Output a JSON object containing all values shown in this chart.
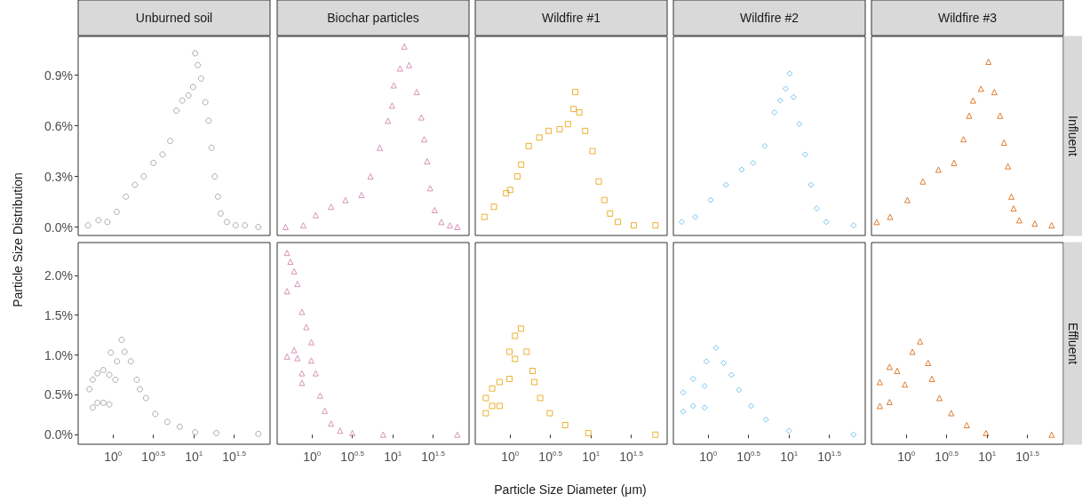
{
  "chart_data": [
    {
      "type": "scatter",
      "title": "Unburned soil",
      "ylabel": "Particle Size Distribution",
      "marker": "circle",
      "grid": false,
      "tick_labels": "y",
      "xlim": [
        0.37,
        88
      ],
      "log": "x",
      "ylim": [
        -0.05,
        1.13
      ],
      "yticks": [
        {
          "value": 0,
          "label": "0.0%"
        },
        {
          "value": 0.3,
          "label": "0.3%"
        },
        {
          "value": 0.6,
          "label": "0.6%"
        },
        {
          "value": 0.9,
          "label": "0.9%"
        }
      ],
      "series": [
        {
          "color": "#999999",
          "x": [
            0.49,
            0.66,
            0.85,
            1.11,
            1.44,
            1.87,
            2.4,
            3.16,
            4.1,
            5.1,
            6.1,
            7.2,
            8.6,
            9.8,
            10.4,
            11.2,
            12.3,
            13.9,
            15.2,
            16.6,
            18.2,
            19.9,
            21.5,
            25.7,
            33,
            43,
            63
          ],
          "values": [
            0.01,
            0.04,
            0.03,
            0.09,
            0.18,
            0.25,
            0.3,
            0.38,
            0.43,
            0.51,
            0.69,
            0.75,
            0.78,
            0.83,
            1.03,
            0.96,
            0.88,
            0.74,
            0.63,
            0.47,
            0.3,
            0.18,
            0.08,
            0.03,
            0.01,
            0.01,
            0.0
          ]
        }
      ]
    },
    {
      "type": "scatter",
      "title": "Biochar particles",
      "marker": "triangle",
      "grid": false,
      "tick_labels": false,
      "xlim": [
        0.37,
        88
      ],
      "log": "x",
      "ylim": [
        -0.05,
        1.13
      ],
      "series": [
        {
          "color": "#cc79a7",
          "x": [
            0.47,
            0.78,
            1.11,
            1.72,
            2.6,
            4.1,
            5.3,
            6.9,
            8.7,
            9.8,
            10.3,
            12.3,
            13.9,
            15.9,
            19.8,
            22.6,
            24.5,
            26.7,
            29,
            33,
            40,
            51,
            63
          ],
          "values": [
            0.0,
            0.01,
            0.07,
            0.12,
            0.16,
            0.19,
            0.3,
            0.47,
            0.63,
            0.72,
            0.84,
            0.94,
            1.07,
            0.96,
            0.8,
            0.65,
            0.52,
            0.39,
            0.23,
            0.1,
            0.03,
            0.01,
            0.0
          ]
        }
      ]
    },
    {
      "type": "scatter",
      "title": "Wildfire #1",
      "marker": "square",
      "grid": false,
      "tick_labels": false,
      "xlim": [
        0.37,
        88
      ],
      "log": "x",
      "ylim": [
        -0.05,
        1.13
      ],
      "series": [
        {
          "color": "#e69f00",
          "x": [
            0.48,
            0.63,
            0.89,
            1.0,
            1.23,
            1.37,
            1.7,
            2.3,
            3.0,
            4.1,
            5.2,
            6.1,
            6.4,
            7.2,
            8.5,
            10.5,
            12.5,
            14.7,
            17.3,
            21.6,
            34,
            63
          ],
          "values": [
            0.06,
            0.12,
            0.2,
            0.22,
            0.3,
            0.37,
            0.48,
            0.53,
            0.57,
            0.58,
            0.61,
            0.7,
            0.8,
            0.68,
            0.57,
            0.45,
            0.27,
            0.16,
            0.08,
            0.03,
            0.01,
            0.01
          ]
        }
      ]
    },
    {
      "type": "scatter",
      "title": "Wildfire #2",
      "marker": "diamond",
      "grid": false,
      "tick_labels": false,
      "xlim": [
        0.37,
        88
      ],
      "log": "x",
      "ylim": [
        -0.05,
        1.13
      ],
      "series": [
        {
          "color": "#56b4e9",
          "x": [
            0.47,
            0.69,
            1.07,
            1.66,
            2.6,
            3.6,
            5.0,
            6.6,
            7.8,
            9.1,
            10.2,
            11.4,
            13.4,
            15.9,
            18.7,
            22,
            29,
            63
          ],
          "values": [
            0.03,
            0.06,
            0.16,
            0.25,
            0.34,
            0.38,
            0.48,
            0.68,
            0.75,
            0.82,
            0.91,
            0.77,
            0.61,
            0.43,
            0.25,
            0.11,
            0.03,
            0.01
          ]
        }
      ]
    },
    {
      "type": "scatter",
      "title": "Wildfire #3",
      "annotations": [
        "Influent"
      ],
      "marker": "triangle",
      "grid": false,
      "tick_labels": false,
      "xlim": [
        0.37,
        88
      ],
      "log": "x",
      "ylim": [
        -0.05,
        1.13
      ],
      "series": [
        {
          "color": "#d55e00",
          "x": [
            0.43,
            0.63,
            1.03,
            1.6,
            2.5,
            3.9,
            5.1,
            6.0,
            6.7,
            8.4,
            10.4,
            12.3,
            14.5,
            16.2,
            18.1,
            20,
            21.3,
            25,
            39,
            63
          ],
          "values": [
            0.03,
            0.06,
            0.16,
            0.27,
            0.34,
            0.38,
            0.52,
            0.66,
            0.75,
            0.82,
            0.98,
            0.8,
            0.66,
            0.5,
            0.36,
            0.18,
            0.11,
            0.04,
            0.02,
            0.01
          ]
        }
      ]
    },
    {
      "type": "scatter",
      "marker": "circle",
      "grid": false,
      "xlim": [
        0.37,
        88
      ],
      "xticks": [
        {
          "value": 1,
          "label": "10$^{0}$"
        },
        {
          "value": 3.162,
          "label": "10$^{0.5}$"
        },
        {
          "value": 10,
          "label": "10$^{1}$"
        },
        {
          "value": 31.62,
          "label": "10$^{1.5}$"
        }
      ],
      "log": "x",
      "ylim": [
        -0.12,
        2.41
      ],
      "yticks": [
        {
          "value": 0,
          "label": "0.0%"
        },
        {
          "value": 0.5,
          "label": "0.5%"
        },
        {
          "value": 1,
          "label": "1.0%"
        },
        {
          "value": 1.5,
          "label": "1.5%"
        },
        {
          "value": 2,
          "label": "2.0%"
        }
      ],
      "series": [
        {
          "color": "#999999",
          "x": [
            0.51,
            0.56,
            0.56,
            0.64,
            0.64,
            0.76,
            0.76,
            0.9,
            0.9,
            0.94,
            1.07,
            1.12,
            1.28,
            1.39,
            1.66,
            1.97,
            2.15,
            2.56,
            3.33,
            4.7,
            6.7,
            10.4,
            19,
            63
          ],
          "values": [
            0.57,
            0.69,
            0.34,
            0.77,
            0.4,
            0.81,
            0.4,
            0.75,
            0.38,
            1.03,
            0.69,
            0.92,
            1.19,
            1.04,
            0.92,
            0.69,
            0.57,
            0.46,
            0.26,
            0.16,
            0.1,
            0.03,
            0.02,
            0.01
          ]
        }
      ]
    },
    {
      "type": "scatter",
      "marker": "triangle",
      "grid": false,
      "tick_labels": "x",
      "xlim": [
        0.37,
        88
      ],
      "xticks": [
        {
          "value": 1,
          "label": "10$^{0}$"
        },
        {
          "value": 3.162,
          "label": "10$^{0.5}$"
        },
        {
          "value": 10,
          "label": "10$^{1}$"
        },
        {
          "value": 31.62,
          "label": "10$^{1.5}$"
        }
      ],
      "log": "x",
      "ylim": [
        -0.12,
        2.41
      ],
      "series": [
        {
          "color": "#cc79a7",
          "x": [
            0.49,
            0.49,
            0.49,
            0.54,
            0.6,
            0.6,
            0.66,
            0.66,
            0.75,
            0.75,
            0.75,
            0.85,
            0.98,
            0.98,
            1.11,
            1.26,
            1.44,
            1.72,
            2.23,
            3.16,
            7.6,
            63
          ],
          "values": [
            2.28,
            1.8,
            0.98,
            2.17,
            2.05,
            1.06,
            1.89,
            0.96,
            1.54,
            0.77,
            0.65,
            1.35,
            1.16,
            0.93,
            0.77,
            0.49,
            0.3,
            0.14,
            0.05,
            0.02,
            0.0,
            0.0
          ]
        }
      ]
    },
    {
      "type": "scatter",
      "xlabel": "Particle Size Diameter (μm)",
      "marker": "square",
      "grid": false,
      "tick_labels": "x",
      "xlim": [
        0.37,
        88
      ],
      "xticks": [
        {
          "value": 1,
          "label": "10$^{0}$"
        },
        {
          "value": 3.162,
          "label": "10$^{0.5}$"
        },
        {
          "value": 10,
          "label": "10$^{1}$"
        },
        {
          "value": 31.62,
          "label": "10$^{1.5}$"
        }
      ],
      "log": "x",
      "ylim": [
        -0.12,
        2.41
      ],
      "series": [
        {
          "color": "#e69f00",
          "x": [
            0.5,
            0.5,
            0.6,
            0.6,
            0.74,
            0.74,
            0.98,
            0.98,
            1.15,
            1.15,
            1.36,
            1.6,
            1.9,
            2.0,
            2.36,
            3.1,
            4.8,
            9.3,
            63
          ],
          "values": [
            0.46,
            0.27,
            0.58,
            0.36,
            0.66,
            0.36,
            0.7,
            1.04,
            0.95,
            1.24,
            1.33,
            1.04,
            0.8,
            0.66,
            0.46,
            0.27,
            0.12,
            0.02,
            0.0
          ]
        }
      ]
    },
    {
      "type": "scatter",
      "marker": "diamond",
      "grid": false,
      "tick_labels": "x",
      "xlim": [
        0.37,
        88
      ],
      "xticks": [
        {
          "value": 1,
          "label": "10$^{0}$"
        },
        {
          "value": 3.162,
          "label": "10$^{0.5}$"
        },
        {
          "value": 10,
          "label": "10$^{1}$"
        },
        {
          "value": 31.62,
          "label": "10$^{1.5}$"
        }
      ],
      "log": "x",
      "ylim": [
        -0.12,
        2.41
      ],
      "series": [
        {
          "color": "#56b4e9",
          "x": [
            0.49,
            0.49,
            0.65,
            0.65,
            0.9,
            0.9,
            0.95,
            1.25,
            1.55,
            1.94,
            2.4,
            3.4,
            5.2,
            10,
            63
          ],
          "values": [
            0.53,
            0.29,
            0.7,
            0.36,
            0.61,
            0.34,
            0.92,
            1.09,
            0.9,
            0.75,
            0.56,
            0.36,
            0.19,
            0.05,
            0.0
          ]
        }
      ]
    },
    {
      "type": "scatter",
      "annotations": [
        "Effluent"
      ],
      "marker": "triangle",
      "grid": false,
      "tick_labels": "x",
      "xlim": [
        0.37,
        88
      ],
      "xticks": [
        {
          "value": 1,
          "label": "10$^{0}$"
        },
        {
          "value": 3.162,
          "label": "10$^{0.5}$"
        },
        {
          "value": 10,
          "label": "10$^{1}$"
        },
        {
          "value": 31.62,
          "label": "10$^{1.5}$"
        }
      ],
      "log": "x",
      "ylim": [
        -0.12,
        2.41
      ],
      "series": [
        {
          "color": "#d55e00",
          "x": [
            0.47,
            0.47,
            0.62,
            0.62,
            0.77,
            0.96,
            1.19,
            1.48,
            1.86,
            2.07,
            2.57,
            3.6,
            5.6,
            9.7,
            63
          ],
          "values": [
            0.66,
            0.36,
            0.85,
            0.41,
            0.8,
            0.63,
            1.04,
            1.17,
            0.9,
            0.7,
            0.46,
            0.27,
            0.12,
            0.02,
            0.0
          ]
        }
      ]
    }
  ]
}
